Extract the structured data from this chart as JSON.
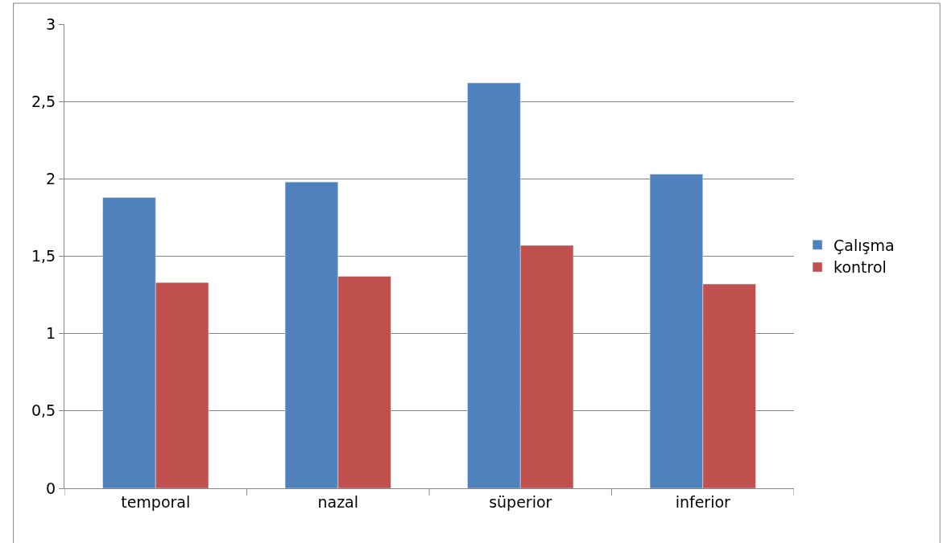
{
  "chart_data": {
    "type": "bar",
    "categories": [
      "temporal",
      "nazal",
      "süperior",
      "inferior"
    ],
    "series": [
      {
        "name": "Çalışma",
        "color": "#4f81bd",
        "values": [
          1.88,
          1.98,
          2.62,
          2.03
        ]
      },
      {
        "name": "kontrol",
        "color": "#c0504d",
        "values": [
          1.33,
          1.37,
          1.57,
          1.32
        ]
      }
    ],
    "ylim": [
      0,
      3
    ],
    "yticks": [
      0,
      {
        "value": 0.5,
        "label": "0,5"
      },
      1,
      {
        "value": 1.5,
        "label": "1,5"
      },
      2,
      {
        "value": 2.5,
        "label": "2,5"
      },
      3
    ],
    "grid": "y",
    "legend": "right"
  }
}
